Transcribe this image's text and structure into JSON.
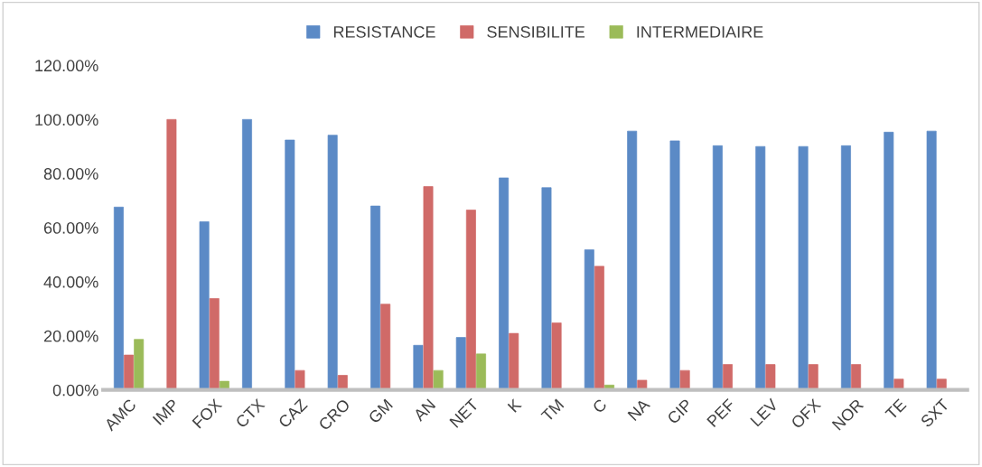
{
  "chart_data": {
    "type": "bar",
    "categories": [
      "AMC",
      "IMP",
      "FOX",
      "CTX",
      "CAZ",
      "CRO",
      "GM",
      "AN",
      "NET",
      "K",
      "TM",
      "C",
      "NA",
      "CIP",
      "PEF",
      "LEV",
      "OFX",
      "NOR",
      "TE",
      "SXT"
    ],
    "series": [
      {
        "name": "RESISTANCE",
        "color": "#5b8ac6",
        "values": [
          67.6,
          0,
          62.2,
          100,
          92.4,
          94.2,
          68.0,
          16.5,
          19.4,
          78.4,
          74.8,
          51.8,
          95.7,
          92.1,
          90.3,
          90.0,
          90.0,
          90.3,
          95.3,
          95.7
        ]
      },
      {
        "name": "SENSIBILITE",
        "color": "#d06a68",
        "values": [
          12.9,
          100,
          33.8,
          0,
          7.2,
          5.4,
          31.7,
          75.2,
          66.5,
          20.9,
          24.8,
          45.7,
          3.6,
          7.2,
          9.4,
          9.4,
          9.4,
          9.4,
          4.0,
          4.0
        ]
      },
      {
        "name": "INTERMEDIAIRE",
        "color": "#9bbb59",
        "values": [
          18.7,
          0,
          3.2,
          0,
          0,
          0,
          0,
          7.2,
          13.3,
          0,
          0,
          1.8,
          0,
          0,
          0,
          0,
          0,
          0,
          0,
          0
        ]
      }
    ],
    "ylim": [
      0,
      120
    ],
    "yticks": [
      {
        "value": 0,
        "label": "0.00%"
      },
      {
        "value": 20,
        "label": "20.00%"
      },
      {
        "value": 40,
        "label": "40.00%"
      },
      {
        "value": 60,
        "label": "60.00%"
      },
      {
        "value": 80,
        "label": "80.00%"
      },
      {
        "value": 100,
        "label": "100.00%"
      },
      {
        "value": 120,
        "label": "120.00%"
      }
    ],
    "grid": false,
    "legend": "top"
  }
}
